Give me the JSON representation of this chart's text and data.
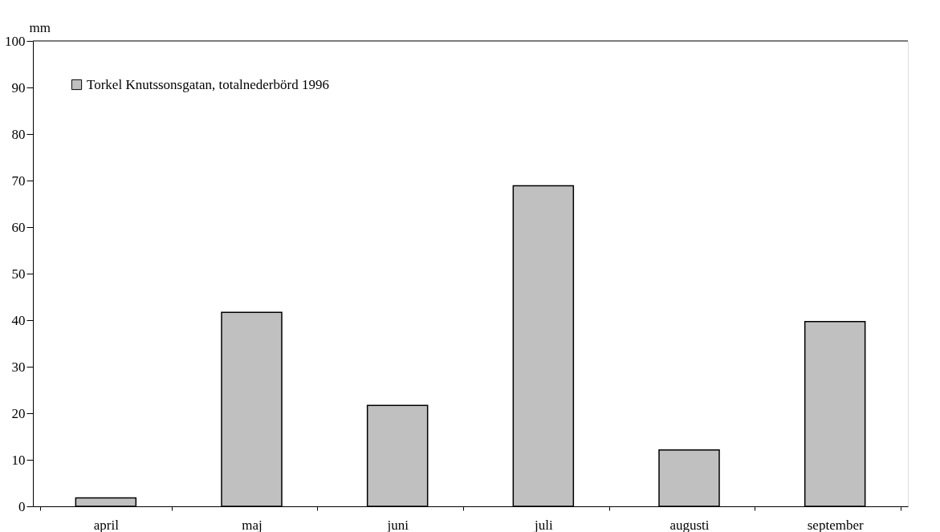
{
  "chart_data": {
    "type": "bar",
    "ylabel": "mm",
    "categories": [
      "april",
      "maj",
      "juni",
      "juli",
      "augusti",
      "september"
    ],
    "series": [
      {
        "name": "Torkel Knutssonsgatan, totalnederbörd 1996",
        "color": "#c0c0c0",
        "values": [
          1.8,
          41.7,
          21.7,
          68.9,
          12.1,
          39.7
        ]
      }
    ],
    "ylim": [
      0,
      100
    ],
    "yticks": [
      0,
      10,
      20,
      30,
      40,
      50,
      60,
      70,
      80,
      90,
      100
    ],
    "grid": false,
    "legend": "top left"
  }
}
